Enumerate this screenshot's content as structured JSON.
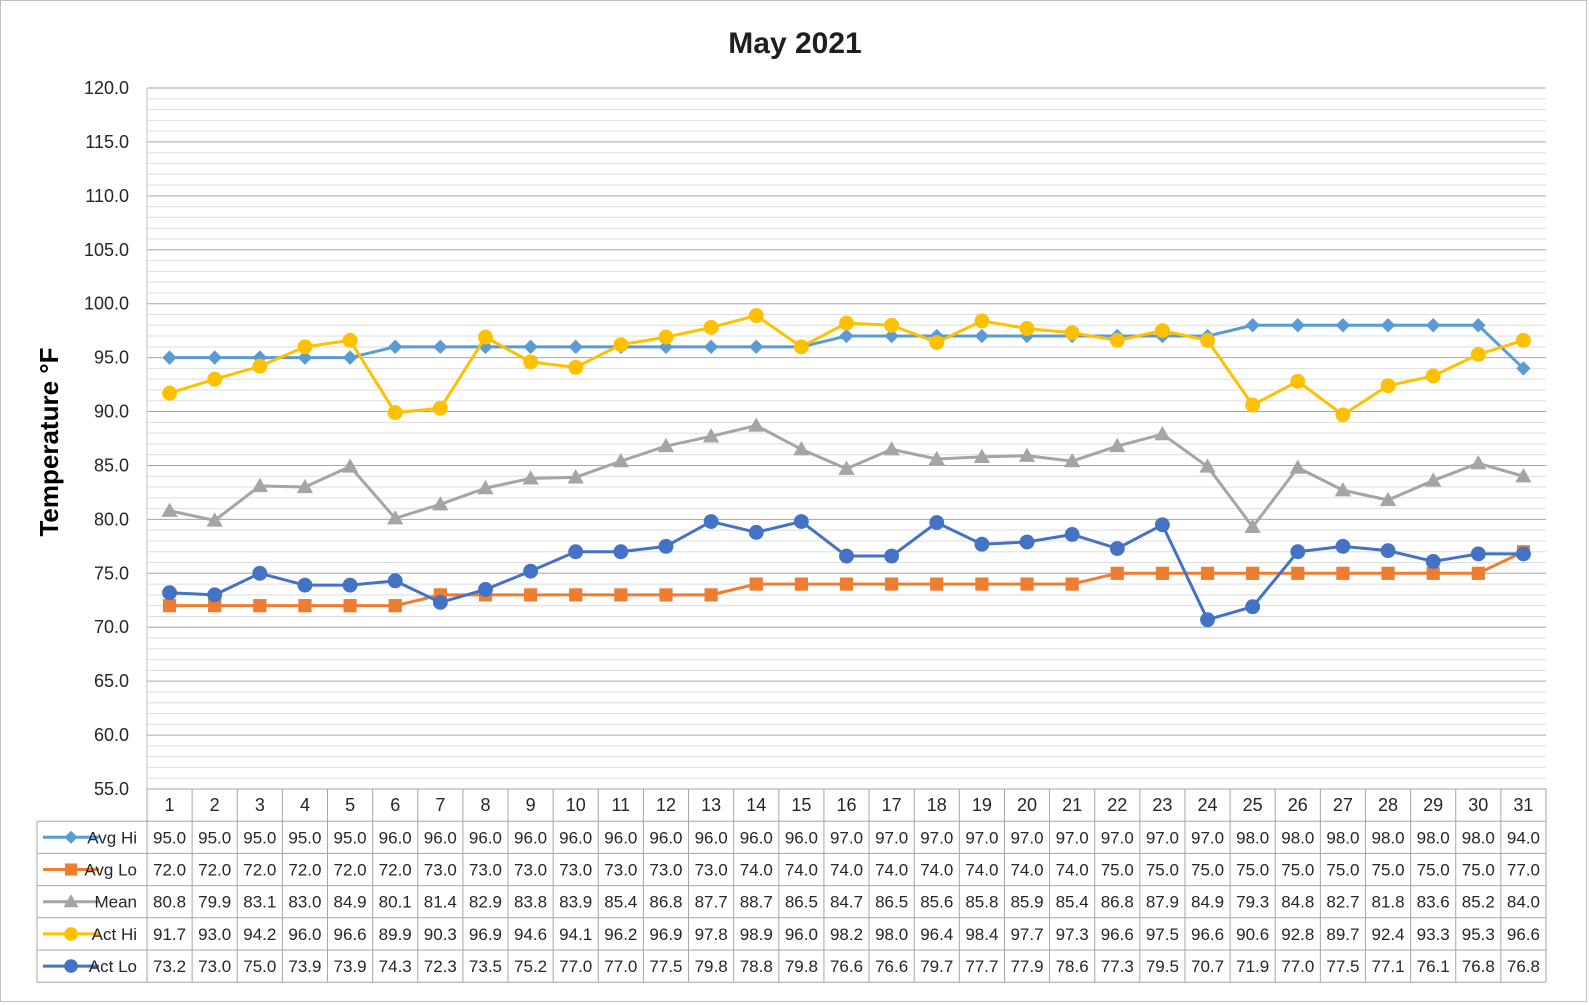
{
  "chart_data": {
    "type": "line",
    "title": "May 2021",
    "xlabel": "",
    "ylabel": "Temperature °F",
    "ylim": [
      55,
      120
    ],
    "y_ticks": [
      "55.0",
      "60.0",
      "65.0",
      "70.0",
      "75.0",
      "80.0",
      "85.0",
      "90.0",
      "95.0",
      "100.0",
      "105.0",
      "110.0",
      "115.0",
      "120.0"
    ],
    "minor_gridline_step": 1,
    "grid": true,
    "legend": "data-table",
    "categories": [
      "1",
      "2",
      "3",
      "4",
      "5",
      "6",
      "7",
      "8",
      "9",
      "10",
      "11",
      "12",
      "13",
      "14",
      "15",
      "16",
      "17",
      "18",
      "19",
      "20",
      "21",
      "22",
      "23",
      "24",
      "25",
      "26",
      "27",
      "28",
      "29",
      "30",
      "31"
    ],
    "series": [
      {
        "name": "Avg Hi",
        "color": "#5b9bd5",
        "marker": "diamond",
        "values": [
          95.0,
          95.0,
          95.0,
          95.0,
          95.0,
          96.0,
          96.0,
          96.0,
          96.0,
          96.0,
          96.0,
          96.0,
          96.0,
          96.0,
          96.0,
          97.0,
          97.0,
          97.0,
          97.0,
          97.0,
          97.0,
          97.0,
          97.0,
          97.0,
          98.0,
          98.0,
          98.0,
          98.0,
          98.0,
          98.0,
          94.0
        ],
        "labels": [
          "95.0",
          "95.0",
          "95.0",
          "95.0",
          "95.0",
          "96.0",
          "96.0",
          "96.0",
          "96.0",
          "96.0",
          "96.0",
          "96.0",
          "96.0",
          "96.0",
          "96.0",
          "97.0",
          "97.0",
          "97.0",
          "97.0",
          "97.0",
          "97.0",
          "97.0",
          "97.0",
          "97.0",
          "98.0",
          "98.0",
          "98.0",
          "98.0",
          "98.0",
          "98.0",
          "94.0"
        ]
      },
      {
        "name": "Avg Lo",
        "color": "#ed7d31",
        "marker": "square",
        "values": [
          72.0,
          72.0,
          72.0,
          72.0,
          72.0,
          72.0,
          73.0,
          73.0,
          73.0,
          73.0,
          73.0,
          73.0,
          73.0,
          74.0,
          74.0,
          74.0,
          74.0,
          74.0,
          74.0,
          74.0,
          74.0,
          75.0,
          75.0,
          75.0,
          75.0,
          75.0,
          75.0,
          75.0,
          75.0,
          75.0,
          77.0
        ],
        "labels": [
          "72.0",
          "72.0",
          "72.0",
          "72.0",
          "72.0",
          "72.0",
          "73.0",
          "73.0",
          "73.0",
          "73.0",
          "73.0",
          "73.0",
          "73.0",
          "74.0",
          "74.0",
          "74.0",
          "74.0",
          "74.0",
          "74.0",
          "74.0",
          "74.0",
          "75.0",
          "75.0",
          "75.0",
          "75.0",
          "75.0",
          "75.0",
          "75.0",
          "75.0",
          "75.0",
          "77.0"
        ]
      },
      {
        "name": "Mean",
        "color": "#a5a5a5",
        "marker": "triangle",
        "values": [
          80.8,
          79.9,
          83.1,
          83.0,
          84.9,
          80.1,
          81.4,
          82.9,
          83.8,
          83.9,
          85.4,
          86.8,
          87.7,
          88.7,
          86.5,
          84.7,
          86.5,
          85.6,
          85.8,
          85.9,
          85.4,
          86.8,
          87.9,
          84.9,
          79.3,
          84.8,
          82.7,
          81.8,
          83.6,
          85.2,
          84.0
        ],
        "labels": [
          "80.8",
          "79.9",
          "83.1",
          "83.0",
          "84.9",
          "80.1",
          "81.4",
          "82.9",
          "83.8",
          "83.9",
          "85.4",
          "86.8",
          "87.7",
          "88.7",
          "86.5",
          "84.7",
          "86.5",
          "85.6",
          "85.8",
          "85.9",
          "85.4",
          "86.8",
          "87.9",
          "84.9",
          "79.3",
          "84.8",
          "82.7",
          "81.8",
          "83.6",
          "85.2",
          "84.0"
        ]
      },
      {
        "name": "Act Hi",
        "color": "#ffc000",
        "marker": "circle",
        "values": [
          91.7,
          93.0,
          94.2,
          96.0,
          96.6,
          89.9,
          90.3,
          96.9,
          94.6,
          94.1,
          96.2,
          96.9,
          97.8,
          98.9,
          96.0,
          98.2,
          98.0,
          96.4,
          98.4,
          97.7,
          97.3,
          96.6,
          97.5,
          96.6,
          90.6,
          92.8,
          89.7,
          92.4,
          93.3,
          95.3,
          96.6
        ],
        "labels": [
          "91.7",
          "93.0",
          "94.2",
          "96.0",
          "96.6",
          "89.9",
          "90.3",
          "96.9",
          "94.6",
          "94.1",
          "96.2",
          "96.9",
          "97.8",
          "98.9",
          "96.0",
          "98.2",
          "98.0",
          "96.4",
          "98.4",
          "97.7",
          "97.3",
          "96.6",
          "97.5",
          "96.6",
          "90.6",
          "92.8",
          "89.7",
          "92.4",
          "93.3",
          "95.3",
          "96.6"
        ]
      },
      {
        "name": "Act Lo",
        "color": "#4472c4",
        "marker": "circle",
        "values": [
          73.2,
          73.0,
          75.0,
          73.9,
          73.9,
          74.3,
          72.3,
          73.5,
          75.2,
          77.0,
          77.0,
          77.5,
          79.8,
          78.8,
          79.8,
          76.6,
          76.6,
          79.7,
          77.7,
          77.9,
          78.6,
          77.3,
          79.5,
          70.7,
          71.9,
          77.0,
          77.5,
          77.1,
          76.1,
          76.8,
          76.8
        ],
        "labels": [
          "73.2",
          "73.0",
          "75.0",
          "73.9",
          "73.9",
          "74.3",
          "72.3",
          "73.5",
          "75.2",
          "77.0",
          "77.0",
          "77.5",
          "79.8",
          "78.8",
          "79.8",
          "76.6",
          "76.6",
          "79.7",
          "77.7",
          "77.9",
          "78.6",
          "77.3",
          "79.5",
          "70.7",
          "71.9",
          "77.0",
          "77.5",
          "77.1",
          "76.1",
          "76.8",
          "76.8"
        ]
      }
    ]
  }
}
